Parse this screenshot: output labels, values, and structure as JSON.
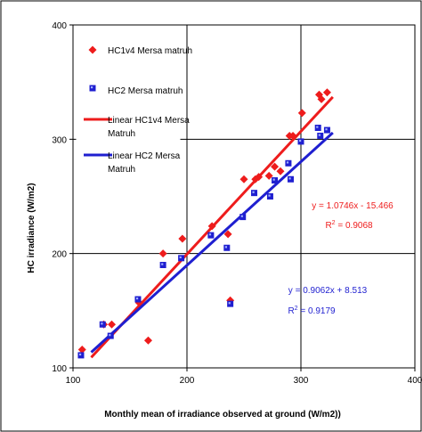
{
  "chart_data": {
    "type": "scatter",
    "xlabel": "Monthly mean of irradiance observed at ground  (W/m2))",
    "ylabel": "HC irradiance (W/m2)",
    "xlim": [
      100,
      400
    ],
    "ylim": [
      100,
      400
    ],
    "xticks": [
      "100",
      "200",
      "300",
      "400"
    ],
    "yticks": [
      "100",
      "200",
      "300",
      "400"
    ],
    "grid": true,
    "legend_position": "top-left",
    "series": [
      {
        "name": "HC1v4 Mersa matruh",
        "marker": "diamond",
        "color": "#ee1c1c",
        "points": [
          [
            108,
            116
          ],
          [
            127,
            138
          ],
          [
            134,
            138
          ],
          [
            158,
            157
          ],
          [
            166,
            124
          ],
          [
            179,
            200
          ],
          [
            196,
            213
          ],
          [
            222,
            224
          ],
          [
            236,
            217
          ],
          [
            238,
            159
          ],
          [
            250,
            265
          ],
          [
            260,
            265
          ],
          [
            263,
            267
          ],
          [
            272,
            268
          ],
          [
            277,
            276
          ],
          [
            282,
            272
          ],
          [
            290,
            303
          ],
          [
            293,
            303
          ],
          [
            301,
            323
          ],
          [
            316,
            339
          ],
          [
            318,
            335
          ],
          [
            323,
            341
          ]
        ]
      },
      {
        "name": "HC2 Mersa matruh",
        "marker": "square",
        "color": "#1f1fd0",
        "points": [
          [
            107,
            111
          ],
          [
            126,
            138
          ],
          [
            133,
            128
          ],
          [
            157,
            160
          ],
          [
            179,
            190
          ],
          [
            195,
            196
          ],
          [
            221,
            216
          ],
          [
            235,
            205
          ],
          [
            238,
            156
          ],
          [
            249,
            232
          ],
          [
            259,
            253
          ],
          [
            273,
            250
          ],
          [
            277,
            264
          ],
          [
            289,
            279
          ],
          [
            291,
            265
          ],
          [
            300,
            298
          ],
          [
            315,
            310
          ],
          [
            317,
            303
          ],
          [
            323,
            308
          ]
        ]
      },
      {
        "name": "Linear HC1v4 Mersa Matruh",
        "type": "line",
        "color": "#ee1c1c",
        "slope": 1.0746,
        "intercept": -15.466,
        "x_range": [
          116,
          328
        ]
      },
      {
        "name": "Linear HC2 Mersa Matruh",
        "type": "line",
        "color": "#1f1fd0",
        "slope": 0.9062,
        "intercept": 8.513,
        "x_range": [
          116,
          328
        ]
      }
    ],
    "legend": [
      {
        "label": "HC1v4 Mersa matruh",
        "kind": "diamond",
        "color": "#ee1c1c"
      },
      {
        "label": "HC2 Mersa matruh",
        "kind": "square",
        "color": "#1f1fd0"
      },
      {
        "label_lines": [
          "Linear HC1v4 Mersa",
          "Matruh"
        ],
        "kind": "line",
        "color": "#ee1c1c"
      },
      {
        "label_lines": [
          "Linear HC2 Mersa",
          "Matruh"
        ],
        "kind": "line",
        "color": "#1f1fd0"
      }
    ],
    "annotations": [
      {
        "equation": "y = 1.0746x - 15.466",
        "r2_value": "0.9068",
        "color": "#ee1c1c"
      },
      {
        "equation": "y = 0.9062x + 8.513",
        "r2_value": "0.9179",
        "color": "#1f1fd0"
      }
    ],
    "r2_label": "R",
    "r2_sup": "2",
    "r2_eq": " = "
  }
}
